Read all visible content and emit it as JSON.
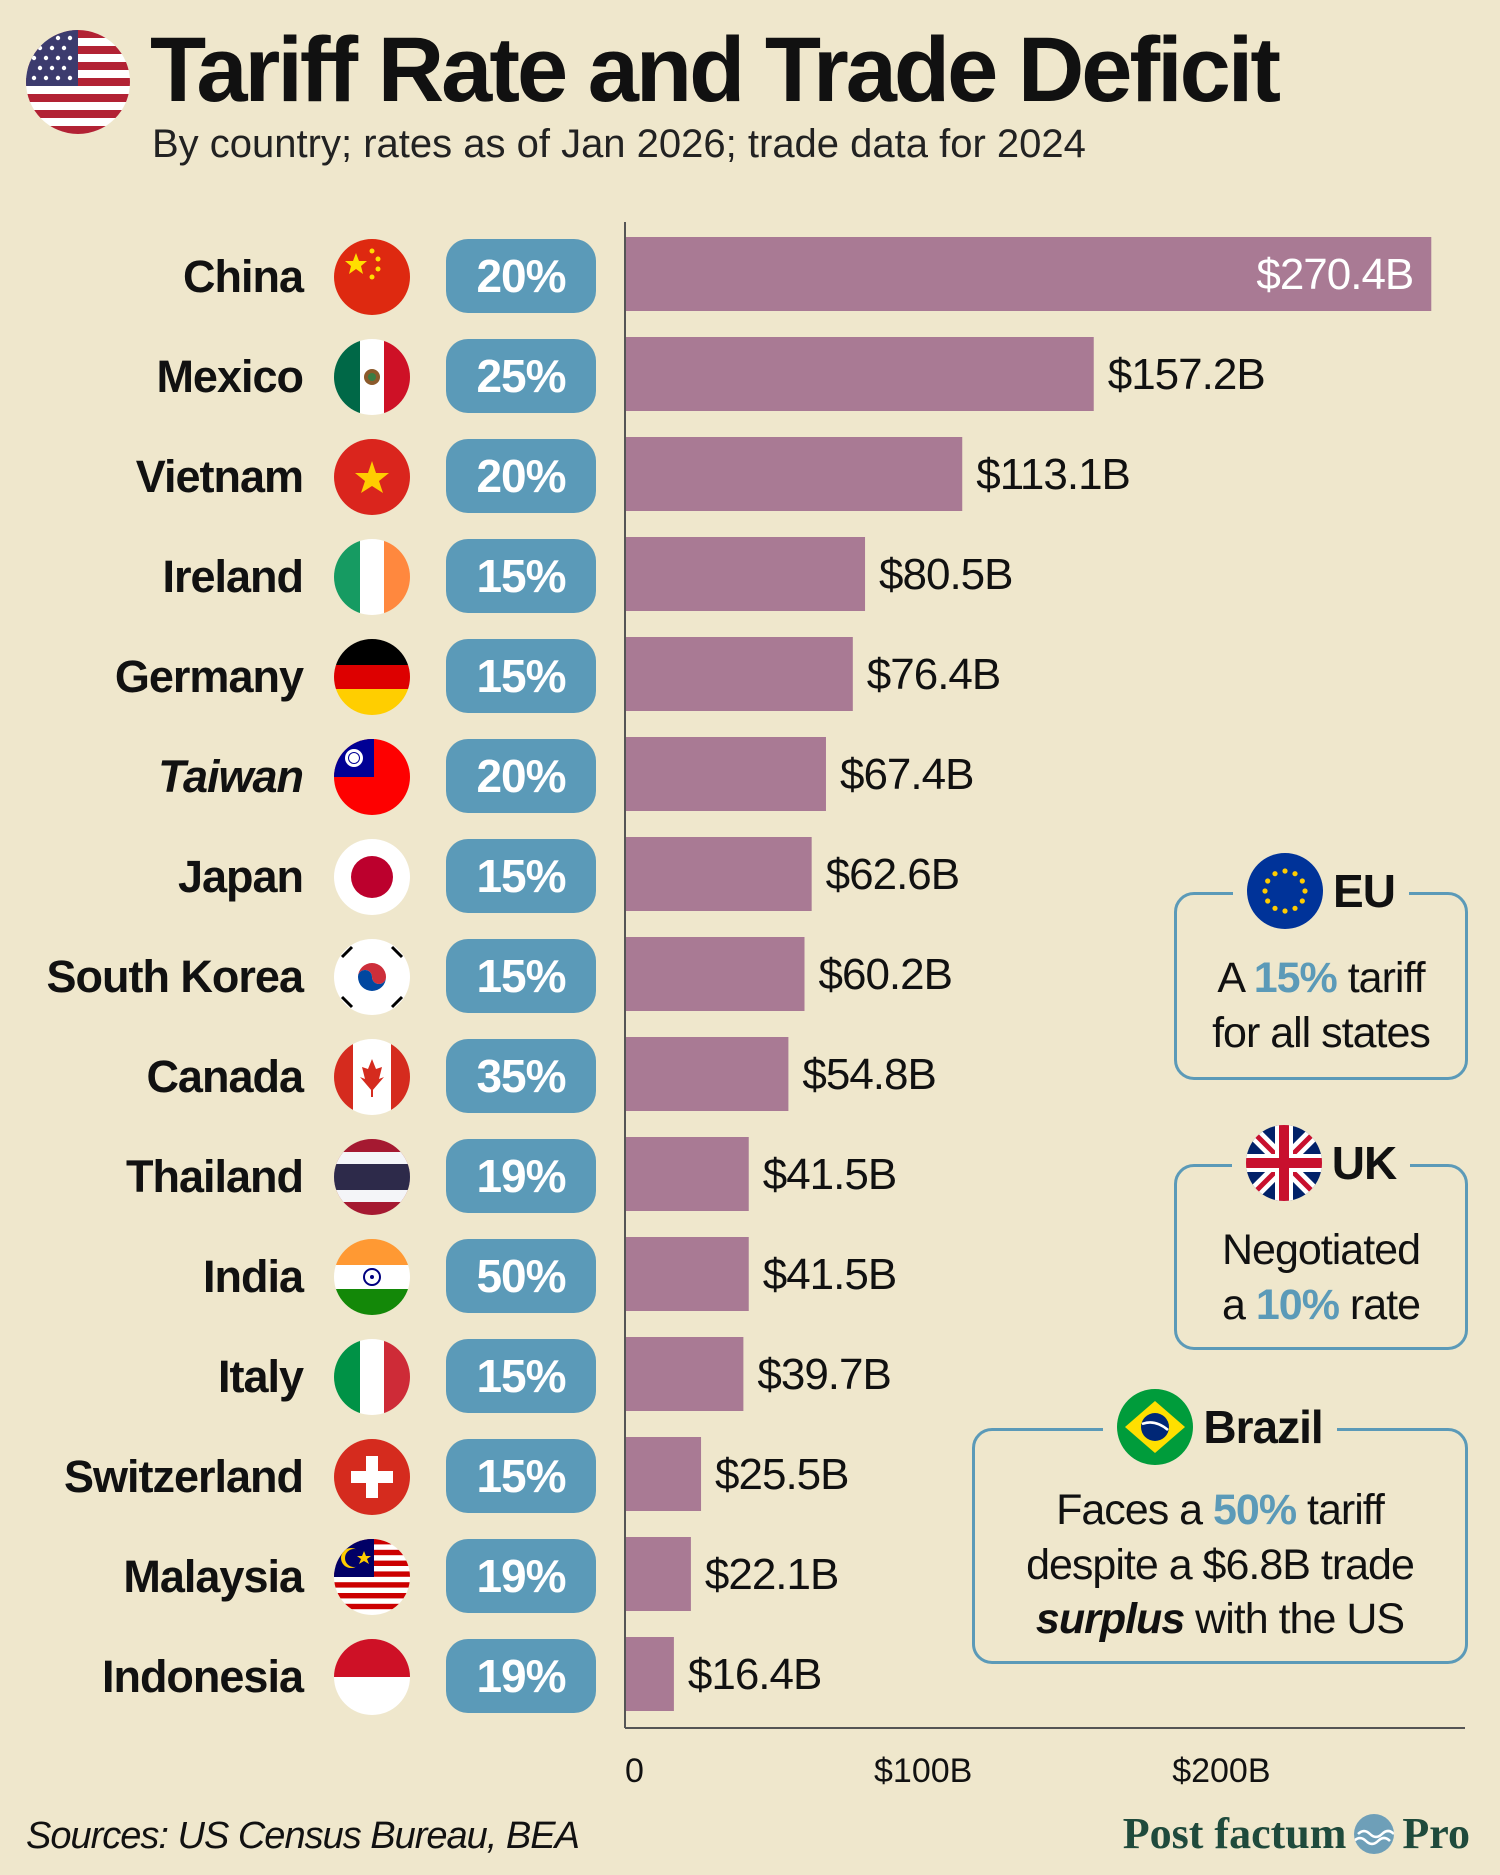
{
  "header": {
    "title": "Tariff Rate and Trade Deficit",
    "subtitle": "By country; rates as of Jan 2026; trade data for 2024",
    "flag_icon": "us-flag-icon"
  },
  "colors": {
    "bar": "#a97a94",
    "rate_badge": "#5b9ab8",
    "background": "#efe7cc",
    "brand": "#1f4a3c"
  },
  "chart_data": {
    "type": "bar",
    "orientation": "horizontal",
    "title": "Tariff Rate and Trade Deficit",
    "subtitle": "By country; rates as of Jan 2026; trade data for 2024",
    "categories": [
      "China",
      "Mexico",
      "Vietnam",
      "Ireland",
      "Germany",
      "Taiwan",
      "Japan",
      "South Korea",
      "Canada",
      "Thailand",
      "India",
      "Italy",
      "Switzerland",
      "Malaysia",
      "Indonesia"
    ],
    "values": [
      270.4,
      157.2,
      113.1,
      80.5,
      76.4,
      67.4,
      62.6,
      60.2,
      54.8,
      41.5,
      41.5,
      39.7,
      25.5,
      22.1,
      16.4
    ],
    "value_labels": [
      "$270.4B",
      "$157.2B",
      "$113.1B",
      "$80.5B",
      "$76.4B",
      "$67.4B",
      "$62.6B",
      "$60.2B",
      "$54.8B",
      "$41.5B",
      "$41.5B",
      "$39.7B",
      "$25.5B",
      "$22.1B",
      "$16.4B"
    ],
    "tariff_rates": [
      "20%",
      "25%",
      "20%",
      "15%",
      "15%",
      "20%",
      "15%",
      "15%",
      "35%",
      "19%",
      "50%",
      "15%",
      "15%",
      "19%",
      "19%"
    ],
    "xlim": [
      0,
      275
    ],
    "xticks": [
      0,
      100,
      200
    ],
    "xtick_labels": [
      "0",
      "$100B",
      "$200B"
    ],
    "grid": false
  },
  "rows": [
    {
      "country": "China",
      "rate": "20%",
      "flag": "china-flag-icon",
      "italic": false
    },
    {
      "country": "Mexico",
      "rate": "25%",
      "flag": "mexico-flag-icon",
      "italic": false
    },
    {
      "country": "Vietnam",
      "rate": "20%",
      "flag": "vietnam-flag-icon",
      "italic": false
    },
    {
      "country": "Ireland",
      "rate": "15%",
      "flag": "ireland-flag-icon",
      "italic": false
    },
    {
      "country": "Germany",
      "rate": "15%",
      "flag": "germany-flag-icon",
      "italic": false
    },
    {
      "country": "Taiwan",
      "rate": "20%",
      "flag": "taiwan-flag-icon",
      "italic": true
    },
    {
      "country": "Japan",
      "rate": "15%",
      "flag": "japan-flag-icon",
      "italic": false
    },
    {
      "country": "South Korea",
      "rate": "15%",
      "flag": "south-korea-flag-icon",
      "italic": false
    },
    {
      "country": "Canada",
      "rate": "35%",
      "flag": "canada-flag-icon",
      "italic": false
    },
    {
      "country": "Thailand",
      "rate": "19%",
      "flag": "thailand-flag-icon",
      "italic": false
    },
    {
      "country": "India",
      "rate": "50%",
      "flag": "india-flag-icon",
      "italic": false
    },
    {
      "country": "Italy",
      "rate": "15%",
      "flag": "italy-flag-icon",
      "italic": false
    },
    {
      "country": "Switzerland",
      "rate": "15%",
      "flag": "switzerland-flag-icon",
      "italic": false
    },
    {
      "country": "Malaysia",
      "rate": "19%",
      "flag": "malaysia-flag-icon",
      "italic": false
    },
    {
      "country": "Indonesia",
      "rate": "19%",
      "flag": "indonesia-flag-icon",
      "italic": false
    }
  ],
  "callouts": {
    "eu": {
      "name": "EU",
      "flag": "eu-flag-icon",
      "line1_pre": "A ",
      "line1_hl": "15%",
      "line1_post": " tariff",
      "line2": "for all states"
    },
    "uk": {
      "name": "UK",
      "flag": "uk-flag-icon",
      "line1": "Negotiated",
      "line2_pre": "a ",
      "line2_hl": "10%",
      "line2_post": " rate"
    },
    "brazil": {
      "name": "Brazil",
      "flag": "brazil-flag-icon",
      "line1_pre": "Faces a ",
      "line1_hl": "50%",
      "line1_post": " tariff",
      "line2": "despite a $6.8B trade",
      "line3_em": "surplus",
      "line3_post": " with the US"
    }
  },
  "footer": {
    "source": "Sources: US Census Bureau, BEA",
    "brand_left": "Post factum",
    "brand_right": "Pro",
    "brand_icon": "wave-logo-icon"
  }
}
